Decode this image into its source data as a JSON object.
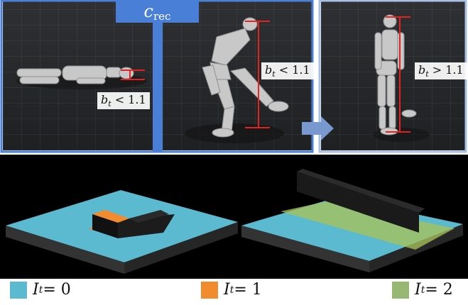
{
  "top_panel": {
    "bracket_label": "c_rec",
    "bracket_sub": "rec",
    "bracket_main": "c",
    "labels": [
      {
        "text": "b_t < 1.1",
        "main": "b",
        "sub": "t",
        "rest": " < 1.1"
      },
      {
        "text": "b_t < 1.1",
        "main": "b",
        "sub": "t",
        "rest": " < 1.1"
      },
      {
        "text": "b_t > 1.1",
        "main": "b",
        "sub": "t",
        "rest": " > 1.1"
      }
    ]
  },
  "legend": [
    {
      "var": "I",
      "sub": "t",
      "rest": " = 0",
      "color": "#5bbad0"
    },
    {
      "var": "I",
      "sub": "t",
      "rest": " = 1",
      "color": "#f28a2e"
    },
    {
      "var": "I",
      "sub": "t",
      "rest": " = 2",
      "color": "#97b872"
    }
  ],
  "colors": {
    "bracket": "#4a7fd8",
    "height_line": "#e52222",
    "terrain_blue": "#5bbad0",
    "terrain_orange": "#f28a2e",
    "terrain_green": "#a6c15a",
    "arrow": "#7a98d0"
  }
}
